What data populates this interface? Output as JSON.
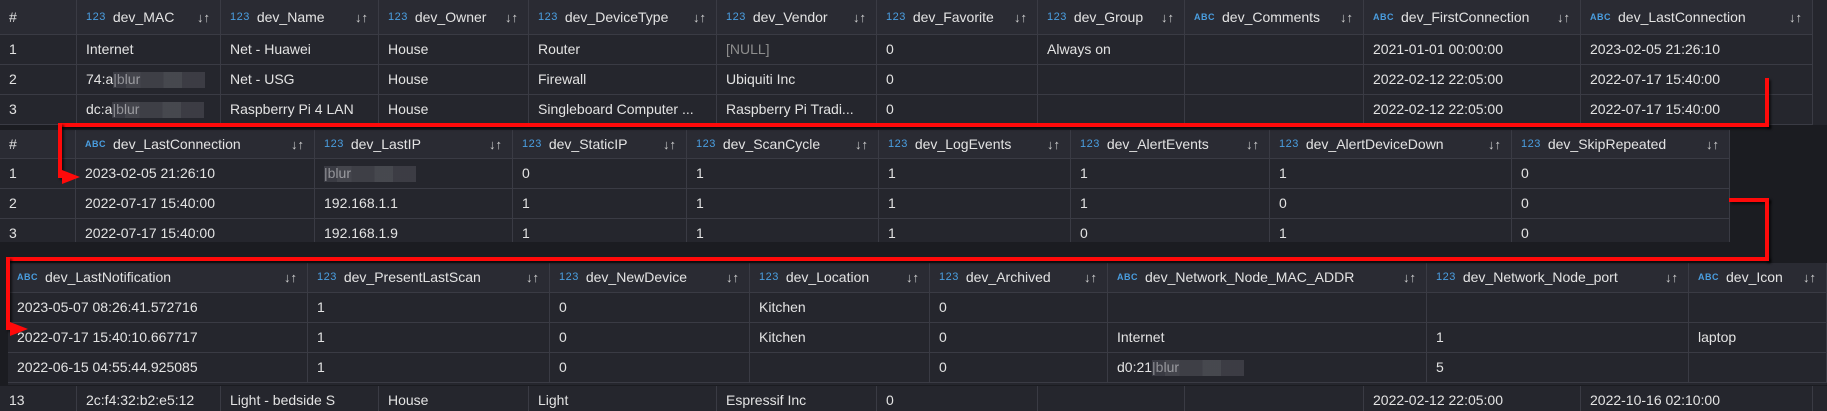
{
  "sort_glyph": "↓↑",
  "colors": {
    "type_badge": "#4a9ee0",
    "arrow": "#ff0a0a",
    "null_text": "#8e8e8e"
  },
  "panel1": {
    "columns": [
      {
        "label": "#",
        "type": ""
      },
      {
        "label": "dev_MAC",
        "type": "123"
      },
      {
        "label": "dev_Name",
        "type": "123"
      },
      {
        "label": "dev_Owner",
        "type": "123"
      },
      {
        "label": "dev_DeviceType",
        "type": "123"
      },
      {
        "label": "dev_Vendor",
        "type": "123"
      },
      {
        "label": "dev_Favorite",
        "type": "123"
      },
      {
        "label": "dev_Group",
        "type": "123"
      },
      {
        "label": "dev_Comments",
        "type": "ABC"
      },
      {
        "label": "dev_FirstConnection",
        "type": "ABC"
      },
      {
        "label": "dev_LastConnection",
        "type": "ABC"
      }
    ],
    "rows": [
      [
        "1",
        "Internet",
        "Net - Huawei",
        "House",
        "Router",
        "[NULL]",
        "0",
        "Always on",
        "",
        "2021-01-01 00:00:00",
        "2023-02-05 21:26:10"
      ],
      [
        "2",
        "74:a|blur",
        "Net - USG",
        "House",
        "Firewall",
        "Ubiquiti Inc",
        "0",
        "",
        "",
        "2022-02-12 22:05:00",
        "2022-07-17 15:40:00"
      ],
      [
        "3",
        "dc:a|blur",
        "Raspberry Pi 4 LAN",
        "House",
        "Singleboard Computer ...",
        "Raspberry Pi Tradi...",
        "0",
        "",
        "",
        "2022-02-12 22:05:00",
        "2022-07-17 15:40:00"
      ]
    ],
    "bottom_row": [
      "13",
      "2c:f4:32:b2:e5:12",
      "Light - bedside S",
      "House",
      "Light",
      "Espressif Inc",
      "0",
      "",
      "",
      "2022-02-12 22:05:00",
      "2022-10-16 02:10:00"
    ]
  },
  "panel2": {
    "columns": [
      {
        "label": "#",
        "type": ""
      },
      {
        "label": "dev_LastConnection",
        "type": "ABC"
      },
      {
        "label": "dev_LastIP",
        "type": "123"
      },
      {
        "label": "dev_StaticIP",
        "type": "123"
      },
      {
        "label": "dev_ScanCycle",
        "type": "123"
      },
      {
        "label": "dev_LogEvents",
        "type": "123"
      },
      {
        "label": "dev_AlertEvents",
        "type": "123"
      },
      {
        "label": "dev_AlertDeviceDown",
        "type": "123"
      },
      {
        "label": "dev_SkipRepeated",
        "type": "123"
      }
    ],
    "rows": [
      [
        "1",
        "2023-02-05 21:26:10",
        "|blur",
        "0",
        "1",
        "1",
        "1",
        "1",
        "0"
      ],
      [
        "2",
        "2022-07-17 15:40:00",
        "192.168.1.1",
        "1",
        "1",
        "1",
        "1",
        "0",
        "0"
      ],
      [
        "3",
        "2022-07-17 15:40:00",
        "192.168.1.9",
        "1",
        "1",
        "1",
        "0",
        "1",
        "0"
      ]
    ]
  },
  "panel3": {
    "columns": [
      {
        "label": "dev_LastNotification",
        "type": "ABC"
      },
      {
        "label": "dev_PresentLastScan",
        "type": "123"
      },
      {
        "label": "dev_NewDevice",
        "type": "123"
      },
      {
        "label": "dev_Location",
        "type": "123"
      },
      {
        "label": "dev_Archived",
        "type": "123"
      },
      {
        "label": "dev_Network_Node_MAC_ADDR",
        "type": "ABC"
      },
      {
        "label": "dev_Network_Node_port",
        "type": "123"
      },
      {
        "label": "dev_Icon",
        "type": "ABC"
      }
    ],
    "rows": [
      [
        "2023-05-07 08:26:41.572716",
        "1",
        "0",
        "Kitchen",
        "0",
        "",
        "",
        ""
      ],
      [
        "2022-07-17 15:40:10.667717",
        "1",
        "0",
        "Kitchen",
        "0",
        "Internet",
        "1",
        "laptop"
      ],
      [
        "2022-06-15 04:55:44.925085",
        "1",
        "0",
        "",
        "0",
        "d0:21|blur",
        "5",
        ""
      ]
    ]
  }
}
